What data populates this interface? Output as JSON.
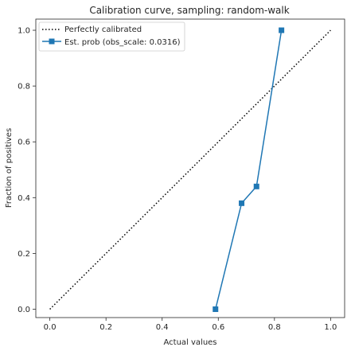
{
  "chart_data": {
    "type": "line",
    "title": "Calibration curve, sampling: random-walk",
    "xlabel": "Actual values",
    "ylabel": "Fraction of positives",
    "xlim": [
      -0.05,
      1.05
    ],
    "ylim": [
      -0.03,
      1.04
    ],
    "xticks": [
      "0.0",
      "0.2",
      "0.4",
      "0.6",
      "0.8",
      "1.0"
    ],
    "yticks": [
      "0.0",
      "0.2",
      "0.4",
      "0.6",
      "0.8",
      "1.0"
    ],
    "grid": false,
    "legend_position": "upper-left",
    "series": [
      {
        "name": "Perfectly calibrated",
        "style": "dotted",
        "color": "#000000",
        "x": [
          0.0,
          1.0
        ],
        "y": [
          0.0,
          1.0
        ]
      },
      {
        "name": "Est. prob (obs_scale: 0.0316)",
        "style": "solid-square-markers",
        "color": "#1f77b4",
        "x": [
          0.59,
          0.683,
          0.736,
          0.825
        ],
        "y": [
          0.0,
          0.38,
          0.44,
          1.0
        ]
      }
    ]
  }
}
